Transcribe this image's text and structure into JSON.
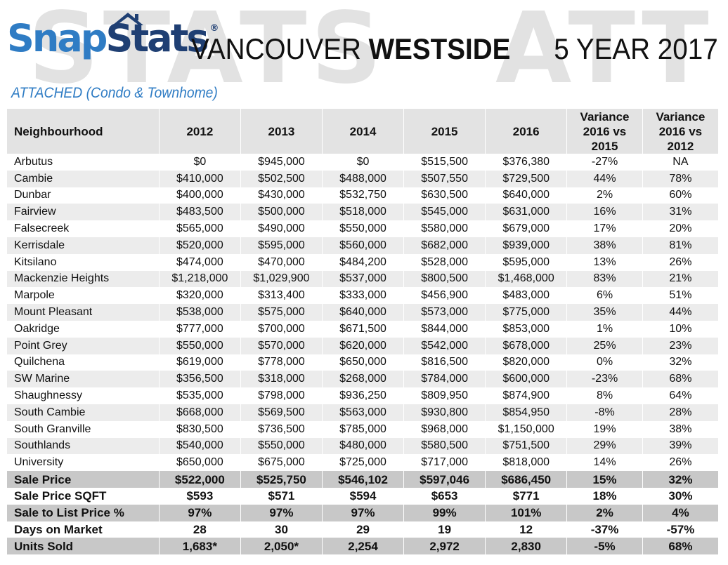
{
  "header": {
    "watermark_left": "STATS",
    "watermark_right": "ATT",
    "logo_part1": "Snap",
    "logo_part2": "Stats",
    "logo_reg": "®",
    "title_region": "VANCOUVER",
    "title_bold": "WESTSIDE",
    "period": "5 YEAR 2017",
    "subtitle": "ATTACHED (Condo & Townhome)",
    "brand_colors": {
      "light_blue": "#2f7cc4",
      "dark_blue": "#1f3f73"
    }
  },
  "table": {
    "columns": [
      "Neighbourhood",
      "2012",
      "2013",
      "2014",
      "2015",
      "2016",
      "Variance 2016 vs 2015",
      "Variance 2016 vs 2012"
    ],
    "column_lines": [
      [
        "Neighbourhood"
      ],
      [
        "2012"
      ],
      [
        "2013"
      ],
      [
        "2014"
      ],
      [
        "2015"
      ],
      [
        "2016"
      ],
      [
        "Variance",
        "2016 vs",
        "2015"
      ],
      [
        "Variance",
        "2016 vs",
        "2012"
      ]
    ],
    "rows": [
      [
        "Arbutus",
        "$0",
        "$945,000",
        "$0",
        "$515,500",
        "$376,380",
        "-27%",
        "NA"
      ],
      [
        "Cambie",
        "$410,000",
        "$502,500",
        "$488,000",
        "$507,550",
        "$729,500",
        "44%",
        "78%"
      ],
      [
        "Dunbar",
        "$400,000",
        "$430,000",
        "$532,750",
        "$630,500",
        "$640,000",
        "2%",
        "60%"
      ],
      [
        "Fairview",
        "$483,500",
        "$500,000",
        "$518,000",
        "$545,000",
        "$631,000",
        "16%",
        "31%"
      ],
      [
        "Falsecreek",
        "$565,000",
        "$490,000",
        "$550,000",
        "$580,000",
        "$679,000",
        "17%",
        "20%"
      ],
      [
        "Kerrisdale",
        "$520,000",
        "$595,000",
        "$560,000",
        "$682,000",
        "$939,000",
        "38%",
        "81%"
      ],
      [
        "Kitsilano",
        "$474,000",
        "$470,000",
        "$484,200",
        "$528,000",
        "$595,000",
        "13%",
        "26%"
      ],
      [
        "Mackenzie Heights",
        "$1,218,000",
        "$1,029,900",
        "$537,000",
        "$800,500",
        "$1,468,000",
        "83%",
        "21%"
      ],
      [
        "Marpole",
        "$320,000",
        "$313,400",
        "$333,000",
        "$456,900",
        "$483,000",
        "6%",
        "51%"
      ],
      [
        "Mount Pleasant",
        "$538,000",
        "$575,000",
        "$640,000",
        "$573,000",
        "$775,000",
        "35%",
        "44%"
      ],
      [
        "Oakridge",
        "$777,000",
        "$700,000",
        "$671,500",
        "$844,000",
        "$853,000",
        "1%",
        "10%"
      ],
      [
        "Point Grey",
        "$550,000",
        "$570,000",
        "$620,000",
        "$542,000",
        "$678,000",
        "25%",
        "23%"
      ],
      [
        "Quilchena",
        "$619,000",
        "$778,000",
        "$650,000",
        "$816,500",
        "$820,000",
        "0%",
        "32%"
      ],
      [
        "SW Marine",
        "$356,500",
        "$318,000",
        "$268,000",
        "$784,000",
        "$600,000",
        "-23%",
        "68%"
      ],
      [
        "Shaughnessy",
        "$535,000",
        "$798,000",
        "$936,250",
        "$809,950",
        "$874,900",
        "8%",
        "64%"
      ],
      [
        "South Cambie",
        "$668,000",
        "$569,500",
        "$563,000",
        "$930,800",
        "$854,950",
        "-8%",
        "28%"
      ],
      [
        "South Granville",
        "$830,500",
        "$736,500",
        "$785,000",
        "$968,000",
        "$1,150,000",
        "19%",
        "38%"
      ],
      [
        "Southlands",
        "$540,000",
        "$550,000",
        "$480,000",
        "$580,500",
        "$751,500",
        "29%",
        "39%"
      ],
      [
        "University",
        "$650,000",
        "$675,000",
        "$725,000",
        "$717,000",
        "$818,000",
        "14%",
        "26%"
      ]
    ],
    "summary_rows": [
      [
        "Sale Price",
        "$522,000",
        "$525,750",
        "$546,102",
        "$597,046",
        "$686,450",
        "15%",
        "32%"
      ],
      [
        "Sale Price SQFT",
        "$593",
        "$571",
        "$594",
        "$653",
        "$771",
        "18%",
        "30%"
      ],
      [
        "Sale to List Price %",
        "97%",
        "97%",
        "97%",
        "99%",
        "101%",
        "2%",
        "4%"
      ],
      [
        "Days on Market",
        "28",
        "30",
        "29",
        "19",
        "12",
        "-37%",
        "-57%"
      ],
      [
        "Units Sold",
        "1,683*",
        "2,050*",
        "2,254",
        "2,972",
        "2,830",
        "-5%",
        "68%"
      ]
    ]
  }
}
